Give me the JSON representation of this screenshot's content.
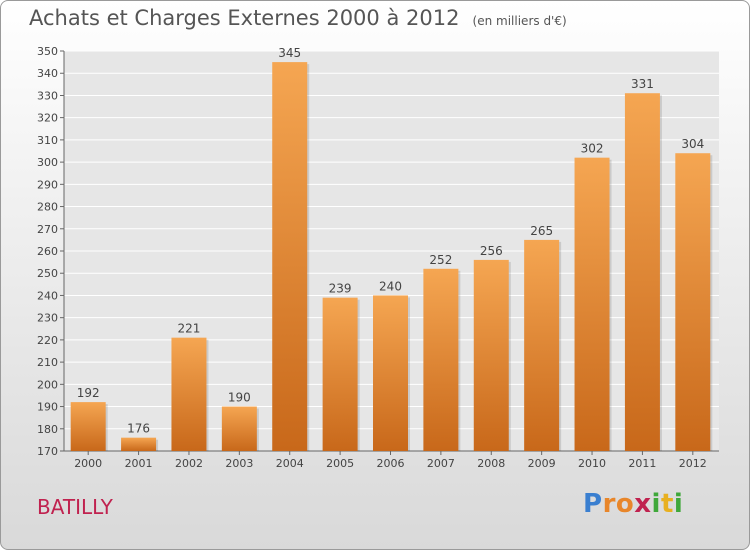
{
  "chart_data": {
    "type": "bar",
    "title": "Achats et Charges Externes 2000 à 2012",
    "subtitle": "(en milliers d'€)",
    "categories": [
      "2000",
      "2001",
      "2002",
      "2003",
      "2004",
      "2005",
      "2006",
      "2007",
      "2008",
      "2009",
      "2010",
      "2011",
      "2012"
    ],
    "values": [
      192,
      176,
      221,
      190,
      345,
      239,
      240,
      252,
      256,
      265,
      302,
      331,
      304
    ],
    "ylim": [
      170,
      350
    ],
    "yticks": [
      170,
      180,
      190,
      200,
      210,
      220,
      230,
      240,
      250,
      260,
      270,
      280,
      290,
      300,
      310,
      320,
      330,
      340,
      350
    ],
    "grid": true,
    "bar_color_top": "#f5a652",
    "bar_color_bottom": "#c8681a"
  },
  "commune": "BATILLY",
  "logo": {
    "letters": [
      "P",
      "r",
      "o",
      "x",
      "i",
      "t",
      "i"
    ],
    "colors": [
      "#3a7fd0",
      "#e8862a",
      "#e8862a",
      "#c0224f",
      "#3fa83a",
      "#e8b020",
      "#3fa83a"
    ]
  }
}
